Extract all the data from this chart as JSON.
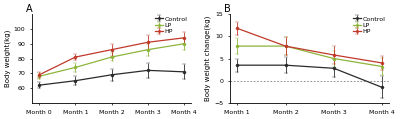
{
  "panel_A": {
    "title": "A",
    "ylabel": "Body weight(kg)",
    "xlabels": [
      "Month 0",
      "Month 1",
      "Month 2",
      "Month 3",
      "Month 4"
    ],
    "ylim": [
      50,
      110
    ],
    "yticks": [
      60,
      70,
      80,
      90,
      100
    ],
    "series": {
      "Control": {
        "color": "#2b2b2b",
        "mean": [
          62,
          65,
          69,
          72,
          71
        ],
        "err": [
          2.0,
          3.0,
          4.0,
          5.0,
          5.0
        ]
      },
      "LP": {
        "color": "#8db53a",
        "mean": [
          68,
          74,
          81,
          86,
          90
        ],
        "err": [
          2.0,
          3.0,
          3.0,
          4.0,
          4.0
        ]
      },
      "HP": {
        "color": "#c0392b",
        "mean": [
          69,
          81,
          86,
          91,
          94
        ],
        "err": [
          2.0,
          2.0,
          4.0,
          5.0,
          4.0
        ]
      }
    }
  },
  "panel_B": {
    "title": "B",
    "ylabel": "Body weight change(kg)",
    "xlabels": [
      "Month 1",
      "Month 2",
      "Month 3",
      "Month 4"
    ],
    "ylim": [
      -5,
      15
    ],
    "yticks": [
      -5,
      0,
      5,
      10,
      15
    ],
    "hline_y": 0,
    "series": {
      "Control": {
        "color": "#2b2b2b",
        "mean": [
          3.5,
          3.5,
          2.8,
          -1.5
        ],
        "err": [
          1.5,
          1.8,
          2.0,
          2.5
        ]
      },
      "LP": {
        "color": "#8db53a",
        "mean": [
          7.8,
          7.8,
          5.0,
          3.2
        ],
        "err": [
          1.8,
          2.0,
          1.8,
          2.0
        ]
      },
      "HP": {
        "color": "#c0392b",
        "mean": [
          11.8,
          7.8,
          5.8,
          4.0
        ],
        "err": [
          1.5,
          2.0,
          2.0,
          1.5
        ]
      }
    }
  },
  "legend_order": [
    "Control",
    "LP",
    "HP"
  ],
  "marker": "o",
  "markersize": 2.2,
  "linewidth": 0.9,
  "capsize": 1.5,
  "elinewidth": 0.6,
  "fontsize_title": 7,
  "fontsize_axis": 5.0,
  "fontsize_tick": 4.5,
  "fontsize_legend": 4.5
}
